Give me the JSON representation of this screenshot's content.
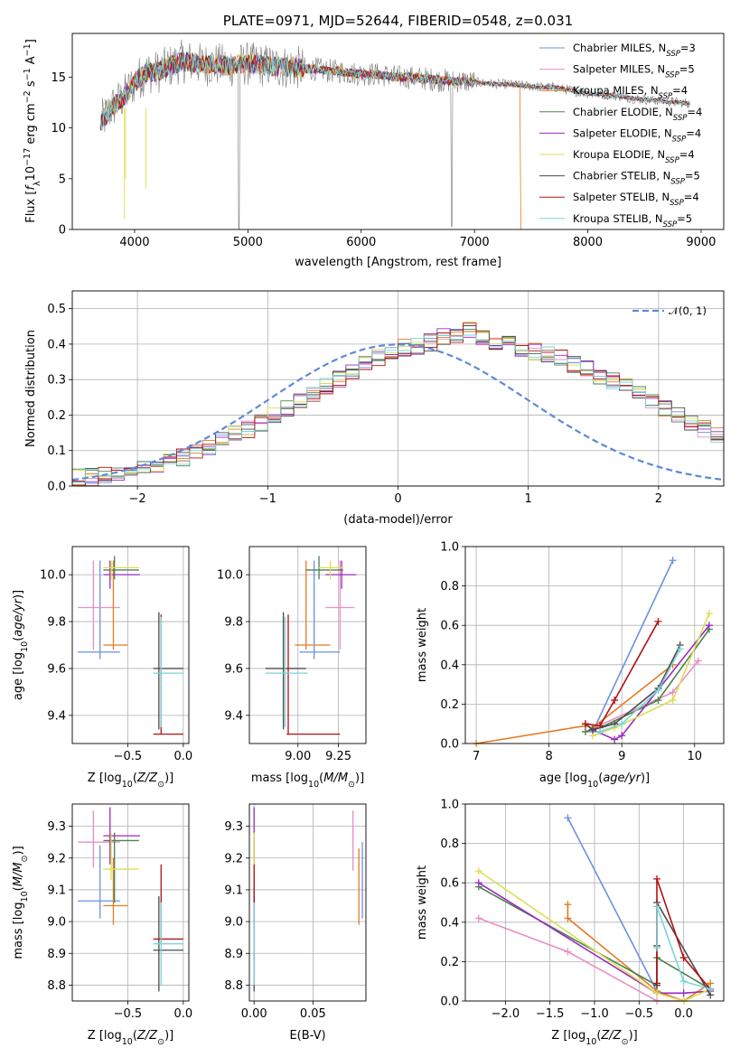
{
  "colors": {
    "series": [
      "#6c91dd",
      "#e98ec4",
      "#e47b25",
      "#4c8050",
      "#9b2ac0",
      "#dcdf52",
      "#4b4b4b",
      "#b21115",
      "#7ad6d6"
    ],
    "gauss": "#5d89d9",
    "grid": "#b0b0b0"
  },
  "series_names": [
    "Chabrier MILES",
    "Salpeter MILES",
    "Kroupa MILES",
    "Chabrier ELODIE",
    "Salpeter ELODIE",
    "Kroupa ELODIE",
    "Chabrier STELIB",
    "Salpeter STELIB",
    "Kroupa STELIB"
  ],
  "chart_data": [
    {
      "id": "spectrum",
      "type": "line",
      "title": "PLATE=0971, MJD=52644, FIBERID=0548, z=0.031",
      "xlabel": "wavelength [Angstrom, rest frame]",
      "ylabel": "Flux [f_λ 10⁻¹⁷ erg cm⁻² s⁻¹ A⁻¹]",
      "xlim": [
        3450,
        9200
      ],
      "ylim": [
        0,
        19.3
      ],
      "xticks": [
        "4000",
        "5000",
        "6000",
        "7000",
        "8000",
        "9000"
      ],
      "yticks": [
        "0",
        "5",
        "10",
        "15"
      ],
      "grid": false,
      "legend": "top-right",
      "legend_entries": [
        {
          "name": "Chabrier MILES, N",
          "sub": "SSP",
          "tail": "=3"
        },
        {
          "name": "Salpeter MILES, N",
          "sub": "SSP",
          "tail": "=5"
        },
        {
          "name": "Kroupa MILES, N",
          "sub": "SSP",
          "tail": "=4"
        },
        {
          "name": "Chabrier ELODIE, N",
          "sub": "SSP",
          "tail": "=4"
        },
        {
          "name": "Salpeter ELODIE, N",
          "sub": "SSP",
          "tail": "=4"
        },
        {
          "name": "Kroupa ELODIE, N",
          "sub": "SSP",
          "tail": "=4"
        },
        {
          "name": "Chabrier STELIB, N",
          "sub": "SSP",
          "tail": "=5"
        },
        {
          "name": "Salpeter STELIB, N",
          "sub": "SSP",
          "tail": "=4"
        },
        {
          "name": "Kroupa STELIB, N",
          "sub": "SSP",
          "tail": "=5"
        }
      ],
      "data_spectrum": {
        "x": [
          3700,
          3800,
          3900,
          4000,
          4100,
          4200,
          4300,
          4400,
          4500,
          4600,
          4700,
          4800,
          4900,
          5000,
          5100,
          5200,
          5300,
          5400,
          5500,
          5600,
          5700,
          5800,
          5900,
          6000,
          6100,
          6200,
          6300,
          6400,
          6500,
          6600,
          6700,
          6800,
          6900,
          7000,
          7100,
          7200,
          7300,
          7400,
          7500,
          7600,
          7700,
          7800,
          7900,
          8000,
          8100,
          8200,
          8300,
          8400,
          8500,
          8600,
          8700,
          8800,
          8900
        ],
        "y": [
          10.5,
          12,
          13,
          14.5,
          15.5,
          15.5,
          16,
          16.5,
          16.5,
          16.2,
          16.3,
          16.1,
          16.2,
          16.3,
          16.2,
          16.1,
          16,
          16,
          15.8,
          15.8,
          15.6,
          15.6,
          15.4,
          15.3,
          15.3,
          15.2,
          15.0,
          15.0,
          14.9,
          14.8,
          14.7,
          14.6,
          14.6,
          14.5,
          14.4,
          14.3,
          14.3,
          14.2,
          14.1,
          14.0,
          14.0,
          13.8,
          13.6,
          13.4,
          13.3,
          13.2,
          13.1,
          12.9,
          12.8,
          12.7,
          12.6,
          12.5,
          12.4
        ]
      },
      "data_model_edges": {
        "starts": [
          3700,
          3700,
          3700,
          3700,
          3700,
          3700,
          3700,
          3700,
          3700
        ],
        "ends": [
          8900,
          8900,
          7420,
          8900,
          8900,
          8900,
          8900,
          8900,
          8900
        ]
      }
    },
    {
      "id": "residuals",
      "type": "bar",
      "xlabel": "(data-model)/error",
      "ylabel": "Normed distribution",
      "xlim": [
        -2.5,
        2.5
      ],
      "ylim": [
        0,
        0.55
      ],
      "xticks": [
        "−2",
        "−1",
        "0",
        "1",
        "2"
      ],
      "yticks": [
        "0.0",
        "0.1",
        "0.2",
        "0.3",
        "0.4",
        "0.5"
      ],
      "grid": true,
      "legend": "top-right",
      "legend_entry": "𝒩(0, 1)",
      "bin_width": 0.1,
      "bin_start": -2.5,
      "base_values": [
        0.025,
        0.025,
        0.028,
        0.035,
        0.045,
        0.055,
        0.06,
        0.07,
        0.08,
        0.095,
        0.11,
        0.13,
        0.145,
        0.16,
        0.18,
        0.2,
        0.22,
        0.24,
        0.26,
        0.28,
        0.3,
        0.32,
        0.345,
        0.36,
        0.375,
        0.39,
        0.395,
        0.405,
        0.42,
        0.43,
        0.44,
        0.42,
        0.41,
        0.4,
        0.39,
        0.38,
        0.37,
        0.36,
        0.345,
        0.33,
        0.31,
        0.295,
        0.28,
        0.26,
        0.24,
        0.22,
        0.2,
        0.18,
        0.16,
        0.14
      ]
    },
    {
      "id": "age-vs-Z",
      "type": "scatter",
      "xlabel": "Z [log₁₀(Z/Z☉)]",
      "ylabel": "age  [log₁₀(age/yr)]",
      "xlim": [
        -1.0,
        0.05
      ],
      "ylim": [
        9.28,
        10.12
      ],
      "xticks": [
        "−0.5",
        "0.0"
      ],
      "yticks": [
        "9.4",
        "9.6",
        "9.8",
        "10.0"
      ],
      "grid": true,
      "points": [
        {
          "s": 0,
          "x": -0.75,
          "y": 9.67,
          "xe": [
            -0.95,
            -0.57
          ],
          "ye": [
            9.64,
            10.06
          ]
        },
        {
          "s": 1,
          "x": -0.81,
          "y": 9.86,
          "xe": [
            -0.95,
            -0.57
          ],
          "ye": [
            9.68,
            10.06
          ]
        },
        {
          "s": 2,
          "x": -0.63,
          "y": 9.7,
          "xe": [
            -0.72,
            -0.5
          ],
          "ye": [
            9.68,
            10.06
          ]
        },
        {
          "s": 3,
          "x": -0.62,
          "y": 10.02,
          "xe": [
            -0.72,
            -0.4
          ],
          "ye": [
            9.98,
            10.08
          ]
        },
        {
          "s": 4,
          "x": -0.66,
          "y": 10.0,
          "xe": [
            -0.72,
            -0.39
          ],
          "ye": [
            9.94,
            10.06
          ]
        },
        {
          "s": 5,
          "x": -0.65,
          "y": 10.03,
          "xe": [
            -0.72,
            -0.4
          ],
          "ye": [
            9.98,
            10.06
          ]
        },
        {
          "s": 6,
          "x": -0.22,
          "y": 9.6,
          "xe": [
            -0.27,
            0.0
          ],
          "ye": [
            9.34,
            9.84
          ]
        },
        {
          "s": 7,
          "x": -0.2,
          "y": 9.32,
          "xe": [
            -0.27,
            0.0
          ],
          "ye": [
            9.32,
            9.83
          ]
        },
        {
          "s": 8,
          "x": -0.2,
          "y": 9.58,
          "xe": [
            -0.27,
            0.0
          ],
          "ye": [
            9.35,
            9.82
          ]
        }
      ]
    },
    {
      "id": "age-vs-mass",
      "type": "scatter",
      "xlabel": "mass [log₁₀(M/M☉)]",
      "ylabel": "",
      "xlim": [
        8.7,
        9.42
      ],
      "ylim": [
        9.28,
        10.12
      ],
      "xticks": [
        "9.00",
        "9.25"
      ],
      "yticks": [
        "9.4",
        "9.6",
        "9.8",
        "10.0"
      ],
      "grid": true,
      "points": [
        {
          "s": 0,
          "x": 9.1,
          "y": 9.67,
          "xe": [
            9.01,
            9.26
          ],
          "ye": [
            9.64,
            10.06
          ]
        },
        {
          "s": 1,
          "x": 9.26,
          "y": 9.86,
          "xe": [
            9.17,
            9.35
          ],
          "ye": [
            9.68,
            10.06
          ]
        },
        {
          "s": 2,
          "x": 9.05,
          "y": 9.7,
          "xe": [
            8.98,
            9.2
          ],
          "ye": [
            9.68,
            10.06
          ]
        },
        {
          "s": 3,
          "x": 9.13,
          "y": 10.02,
          "xe": [
            9.05,
            9.28
          ],
          "ye": [
            9.98,
            10.08
          ]
        },
        {
          "s": 4,
          "x": 9.27,
          "y": 10.0,
          "xe": [
            9.17,
            9.36
          ],
          "ye": [
            9.94,
            10.06
          ]
        },
        {
          "s": 5,
          "x": 9.2,
          "y": 10.03,
          "xe": [
            9.13,
            9.28
          ],
          "ye": [
            9.98,
            10.06
          ]
        },
        {
          "s": 6,
          "x": 8.91,
          "y": 9.6,
          "xe": [
            8.8,
            9.05
          ],
          "ye": [
            9.34,
            9.84
          ]
        },
        {
          "s": 7,
          "x": 8.94,
          "y": 9.32,
          "xe": [
            8.93,
            9.26
          ],
          "ye": [
            9.32,
            9.83
          ]
        },
        {
          "s": 8,
          "x": 8.92,
          "y": 9.58,
          "xe": [
            8.8,
            9.06
          ],
          "ye": [
            9.35,
            9.82
          ]
        }
      ]
    },
    {
      "id": "massweight-vs-age",
      "type": "line",
      "xlabel": "age  [log₁₀(age/yr)]",
      "ylabel": "mass weight",
      "xlim": [
        6.85,
        10.4
      ],
      "ylim": [
        0,
        1.0
      ],
      "xticks": [
        "7",
        "8",
        "9",
        "10"
      ],
      "yticks": [
        "0.0",
        "0.2",
        "0.4",
        "0.6",
        "0.8",
        "1.0"
      ],
      "grid": true,
      "series": [
        {
          "s": 0,
          "x": [
            8.6,
            9.7
          ],
          "y": [
            0.06,
            0.93
          ]
        },
        {
          "s": 1,
          "x": [
            8.5,
            9.7,
            10.05
          ],
          "y": [
            0.06,
            0.26,
            0.42
          ]
        },
        {
          "s": 2,
          "x": [
            7.0,
            8.5,
            8.6,
            9.7
          ],
          "y": [
            0.0,
            0.09,
            0.08,
            0.4
          ]
        },
        {
          "s": 3,
          "x": [
            8.5,
            8.7,
            9.5,
            10.2
          ],
          "y": [
            0.06,
            0.08,
            0.22,
            0.58
          ]
        },
        {
          "s": 4,
          "x": [
            8.6,
            8.9,
            9.0,
            10.2
          ],
          "y": [
            0.07,
            0.02,
            0.04,
            0.6
          ]
        },
        {
          "s": 5,
          "x": [
            8.6,
            8.9,
            9.7,
            10.2
          ],
          "y": [
            0.04,
            0.08,
            0.22,
            0.66
          ]
        },
        {
          "s": 6,
          "x": [
            8.5,
            8.6,
            8.9,
            9.5,
            9.8
          ],
          "y": [
            0.1,
            0.07,
            0.1,
            0.28,
            0.5
          ]
        },
        {
          "s": 7,
          "x": [
            8.5,
            8.7,
            8.9,
            9.5
          ],
          "y": [
            0.1,
            0.09,
            0.22,
            0.62
          ]
        },
        {
          "s": 8,
          "x": [
            8.7,
            9.0,
            9.5,
            9.8
          ],
          "y": [
            0.06,
            0.1,
            0.27,
            0.48
          ]
        }
      ]
    },
    {
      "id": "mass-vs-Z",
      "type": "scatter",
      "xlabel": "Z [log₁₀(Z/Z☉)]",
      "ylabel": "mass [log₁₀(M/M☉)]",
      "xlim": [
        -1.0,
        0.05
      ],
      "ylim": [
        8.75,
        9.37
      ],
      "xticks": [
        "−0.5",
        "0.0"
      ],
      "yticks": [
        "8.8",
        "8.9",
        "9.0",
        "9.1",
        "9.2",
        "9.3"
      ],
      "grid": true,
      "points": [
        {
          "s": 0,
          "x": -0.75,
          "y": 9.065,
          "xe": [
            -0.95,
            -0.57
          ],
          "ye": [
            9.01,
            9.24
          ]
        },
        {
          "s": 1,
          "x": -0.81,
          "y": 9.25,
          "xe": [
            -0.95,
            -0.57
          ],
          "ye": [
            9.17,
            9.35
          ]
        },
        {
          "s": 2,
          "x": -0.63,
          "y": 9.05,
          "xe": [
            -0.72,
            -0.5
          ],
          "ye": [
            8.99,
            9.2
          ]
        },
        {
          "s": 3,
          "x": -0.62,
          "y": 9.255,
          "xe": [
            -0.72,
            -0.4
          ],
          "ye": [
            9.06,
            9.28
          ]
        },
        {
          "s": 4,
          "x": -0.66,
          "y": 9.27,
          "xe": [
            -0.72,
            -0.39
          ],
          "ye": [
            9.18,
            9.36
          ]
        },
        {
          "s": 5,
          "x": -0.65,
          "y": 9.165,
          "xe": [
            -0.72,
            -0.4
          ],
          "ye": [
            9.13,
            9.28
          ]
        },
        {
          "s": 6,
          "x": -0.22,
          "y": 8.91,
          "xe": [
            -0.27,
            0.0
          ],
          "ye": [
            8.78,
            9.08
          ]
        },
        {
          "s": 7,
          "x": -0.2,
          "y": 8.945,
          "xe": [
            -0.27,
            0.0
          ],
          "ye": [
            8.93,
            9.18
          ]
        },
        {
          "s": 8,
          "x": -0.2,
          "y": 8.93,
          "xe": [
            -0.27,
            0.0
          ],
          "ye": [
            8.8,
            9.06
          ]
        }
      ]
    },
    {
      "id": "mass-vs-EBV",
      "type": "scatter",
      "xlabel": "E(B-V)",
      "ylabel": "",
      "xlim": [
        -0.004,
        0.095
      ],
      "ylim": [
        8.75,
        9.37
      ],
      "xticks": [
        "0.00",
        "0.05"
      ],
      "yticks": [
        "8.8",
        "8.9",
        "9.0",
        "9.1",
        "9.2",
        "9.3"
      ],
      "grid": true,
      "points": [
        {
          "s": 0,
          "x": 0.092,
          "y": 9.1,
          "ye": [
            9.01,
            9.25
          ]
        },
        {
          "s": 1,
          "x": 0.084,
          "y": 9.25,
          "ye": [
            9.16,
            9.35
          ]
        },
        {
          "s": 2,
          "x": 0.089,
          "y": 9.05,
          "ye": [
            8.99,
            9.23
          ]
        },
        {
          "s": 3,
          "x": 0.0,
          "y": 9.16,
          "ye": [
            9.06,
            9.26
          ]
        },
        {
          "s": 4,
          "x": 0.0,
          "y": 9.27,
          "ye": [
            9.18,
            9.36
          ]
        },
        {
          "s": 5,
          "x": 0.0,
          "y": 9.2,
          "ye": [
            9.13,
            9.28
          ]
        },
        {
          "s": 6,
          "x": 0.0,
          "y": 8.93,
          "ye": [
            8.78,
            9.08
          ]
        },
        {
          "s": 7,
          "x": 0.0,
          "y": 9.1,
          "ye": [
            9.0,
            9.18
          ]
        },
        {
          "s": 8,
          "x": 0.0,
          "y": 8.94,
          "ye": [
            8.8,
            9.06
          ]
        }
      ]
    },
    {
      "id": "massweight-vs-Z",
      "type": "line",
      "xlabel": "Z [log₁₀(Z/Z☉)]",
      "ylabel": "mass weight",
      "xlim": [
        -2.45,
        0.45
      ],
      "ylim": [
        0,
        1.0
      ],
      "xticks": [
        "−2.0",
        "−1.5",
        "−1.0",
        "−0.5",
        "0.0"
      ],
      "yticks": [
        "0.0",
        "0.2",
        "0.4",
        "0.6",
        "0.8",
        "1.0"
      ],
      "grid": true,
      "series": [
        {
          "s": 0,
          "x": [
            -1.3,
            -0.3,
            0.0
          ],
          "y": [
            0.93,
            0.05,
            0.0
          ]
        },
        {
          "s": 1,
          "x": [
            -2.3,
            -1.3,
            -0.3,
            0.0
          ],
          "y": [
            0.42,
            0.25,
            0.0,
            0.0
          ]
        },
        {
          "s": 2,
          "x": [
            -1.3,
            -1.3,
            -0.3,
            0.0,
            0.3
          ],
          "y": [
            0.49,
            0.42,
            0.05,
            0.0,
            0.09
          ]
        },
        {
          "s": 3,
          "x": [
            -2.3,
            -0.3,
            -0.3,
            0.3
          ],
          "y": [
            0.58,
            0.08,
            0.22,
            0.06
          ]
        },
        {
          "s": 4,
          "x": [
            -2.3,
            -0.3,
            0.0,
            0.3
          ],
          "y": [
            0.6,
            0.04,
            0.04,
            0.05
          ]
        },
        {
          "s": 5,
          "x": [
            -2.3,
            -0.3,
            0.0,
            0.3
          ],
          "y": [
            0.66,
            0.04,
            0.0,
            0.06
          ]
        },
        {
          "s": 6,
          "x": [
            -0.3,
            -0.3,
            -0.3,
            0.3
          ],
          "y": [
            0.28,
            0.08,
            0.5,
            0.03
          ]
        },
        {
          "s": 7,
          "x": [
            -0.3,
            -0.3,
            0.0,
            0.3
          ],
          "y": [
            0.09,
            0.62,
            0.22,
            0.06
          ]
        },
        {
          "s": 8,
          "x": [
            -0.3,
            -0.3,
            0.0,
            0.3
          ],
          "y": [
            0.27,
            0.48,
            0.1,
            0.06
          ]
        }
      ]
    }
  ]
}
